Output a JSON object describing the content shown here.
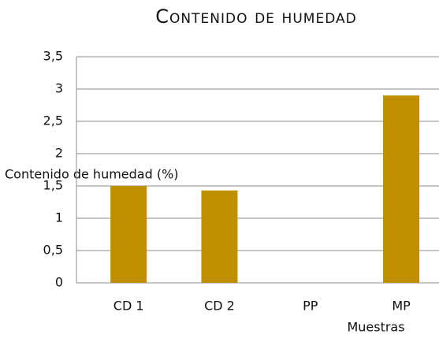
{
  "chart_data": {
    "type": "bar",
    "title": "Contenido de humedad",
    "y_label": "Contenido de humedad (%)",
    "x_label": "Muestras",
    "categories": [
      "CD 1",
      "CD 2",
      "PP",
      "MP"
    ],
    "values": [
      1.5,
      1.43,
      0,
      2.9
    ],
    "color": "#bf8f00",
    "ylim": [
      0,
      3.5
    ],
    "yticks": [
      0,
      {
        "value": 0.5,
        "label": "0,5"
      },
      1,
      {
        "value": 1.5,
        "label": "1,5"
      },
      2,
      {
        "value": 2.5,
        "label": "2,5"
      },
      3,
      {
        "value": 3.5,
        "label": "3,5"
      }
    ],
    "grid": true
  }
}
